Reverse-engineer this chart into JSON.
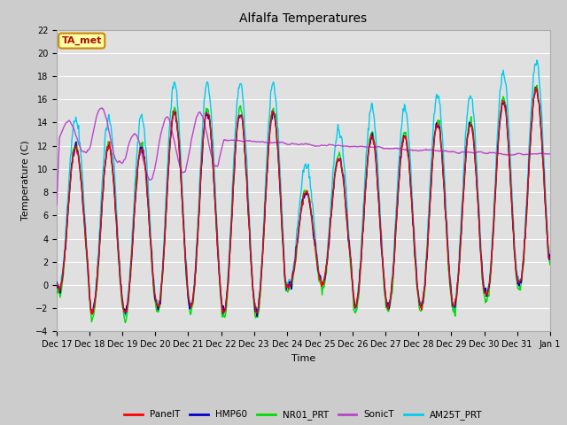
{
  "title": "Alfalfa Temperatures",
  "xlabel": "Time",
  "ylabel": "Temperature (C)",
  "ylim": [
    -4,
    22
  ],
  "yticks": [
    -4,
    -2,
    0,
    2,
    4,
    6,
    8,
    10,
    12,
    14,
    16,
    18,
    20,
    22
  ],
  "series_colors": {
    "PanelT": "#ff0000",
    "HMP60": "#0000cc",
    "NR01_PRT": "#00dd00",
    "SonicT": "#bb44cc",
    "AM25T_PRT": "#00ccee"
  },
  "annotation_text": "TA_met",
  "annotation_box_facecolor": "#ffffaa",
  "annotation_text_color": "#aa1100",
  "annotation_box_edgecolor": "#cc8800",
  "x_tick_labels": [
    "Dec 17",
    "Dec 18",
    "Dec 19",
    "Dec 20",
    "Dec 21",
    "Dec 22",
    "Dec 23",
    "Dec 24",
    "Dec 25",
    "Dec 26",
    "Dec 27",
    "Dec 28",
    "Dec 29",
    "Dec 30",
    "Dec 31",
    "Jan 1"
  ],
  "grid_color": "#ffffff",
  "fig_bg_color": "#cccccc",
  "plot_bg_color": "#e0e0e0",
  "linewidth": 1.0,
  "title_fontsize": 10,
  "axis_fontsize": 8,
  "tick_fontsize": 7
}
